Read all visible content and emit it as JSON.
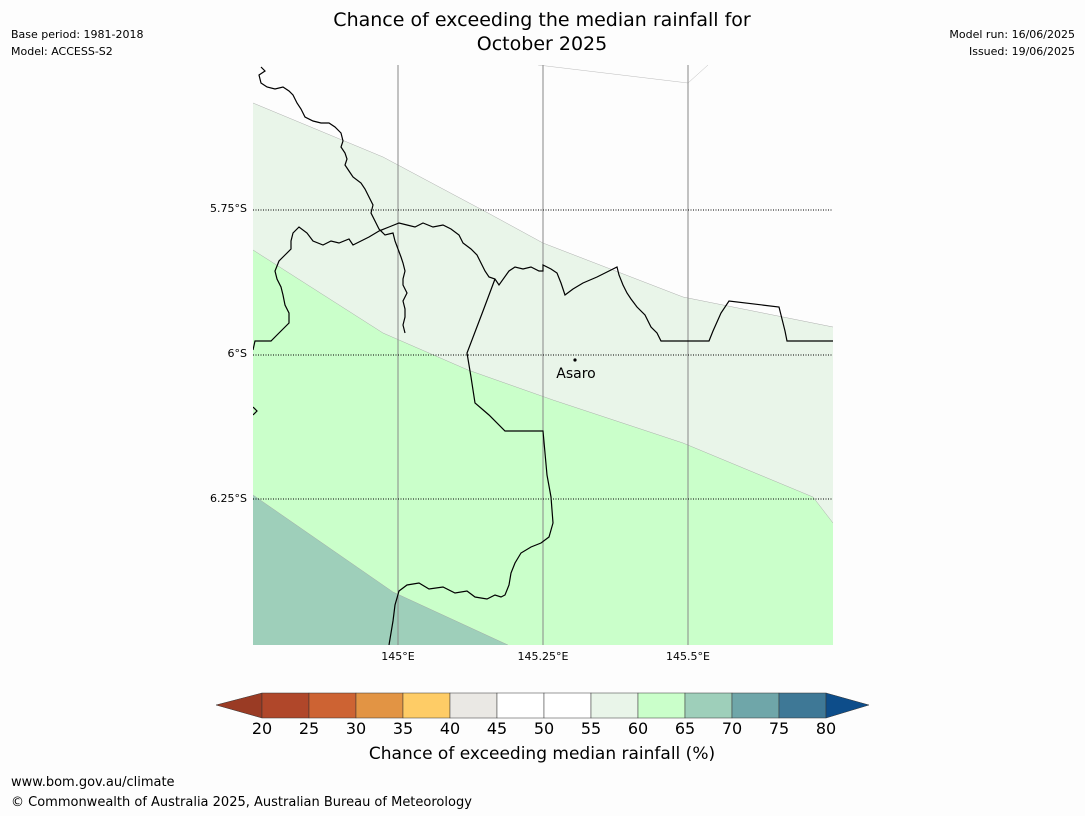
{
  "title": {
    "line1": "Chance of exceeding the median rainfall for",
    "line2": "October 2025"
  },
  "meta_left": {
    "base_period": "Base period: 1981-2018",
    "model": "Model: ACCESS-S2"
  },
  "meta_right": {
    "model_run": "Model run: 16/06/2025",
    "issued": "Issued: 19/06/2025"
  },
  "map": {
    "lat_labels": [
      "5.75°S",
      "6°S",
      "6.25°S"
    ],
    "lon_labels": [
      "145°E",
      "145.25°E",
      "145.5°E"
    ],
    "place": "Asaro",
    "zones": [
      {
        "name": "55-60",
        "color": "#e9f5e9"
      },
      {
        "name": "60-65",
        "color": "#caffca"
      },
      {
        "name": "65-70",
        "color": "#9ecfba"
      }
    ]
  },
  "colorbar": {
    "ticks": [
      "20",
      "25",
      "30",
      "35",
      "40",
      "45",
      "50",
      "55",
      "60",
      "65",
      "70",
      "75",
      "80"
    ],
    "colors": [
      "#9a3b24",
      "#b0472a",
      "#cd6333",
      "#e29444",
      "#fecc66",
      "#eae8e4",
      "#ffffff",
      "#ffffff",
      "#e9f5e9",
      "#caffca",
      "#9ecfba",
      "#6fa6a9",
      "#3e7896",
      "#0d4d8a"
    ],
    "label": "Chance of exceeding median rainfall (%)"
  },
  "footer": {
    "url": "www.bom.gov.au/climate",
    "copyright": "© Commonwealth of Australia 2025, Australian Bureau of Meteorology"
  }
}
